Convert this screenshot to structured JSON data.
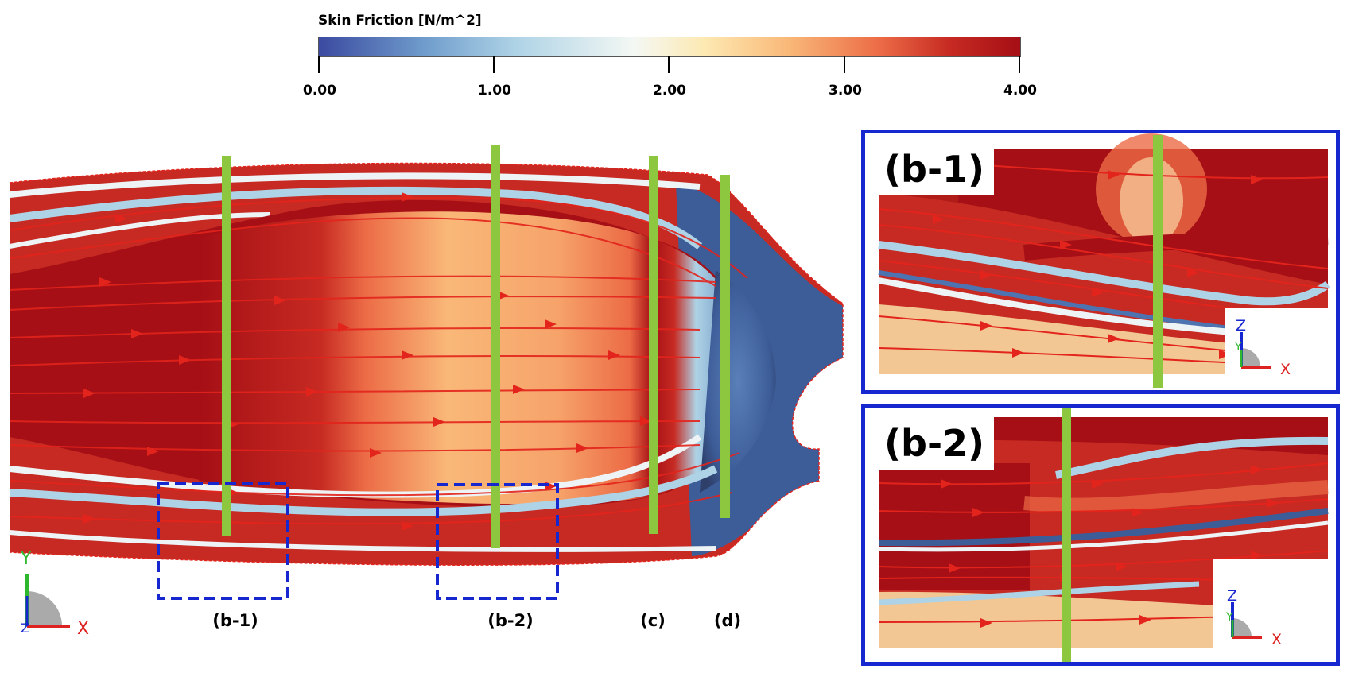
{
  "colorbar": {
    "title": "Skin Friction [N/m^2]",
    "min": 0,
    "max": 4,
    "ticks": [
      "0.00",
      "1.00",
      "2.00",
      "3.00",
      "4.00"
    ],
    "colors": [
      "#3b4aa0",
      "#aed3e6",
      "#f4f8f4",
      "#f9b878",
      "#ec6b46",
      "#a50f15"
    ]
  },
  "main_view": {
    "section_labels": [
      "(b-1)",
      "(b-2)",
      "(c)",
      "(d)"
    ],
    "axes": {
      "vertical": "Y",
      "horizontal": "X",
      "out": "Z"
    }
  },
  "insets": [
    {
      "label": "(b-1)",
      "axes": {
        "vertical": "Z",
        "horizontal": "X",
        "out": "Y"
      }
    },
    {
      "label": "(b-2)",
      "axes": {
        "vertical": "Z",
        "horizontal": "X",
        "out": "Y"
      }
    }
  ],
  "colors": {
    "cut_plane": "#8dc63f",
    "zoom_box": "#1727cf",
    "streamline": "#e3241c"
  }
}
